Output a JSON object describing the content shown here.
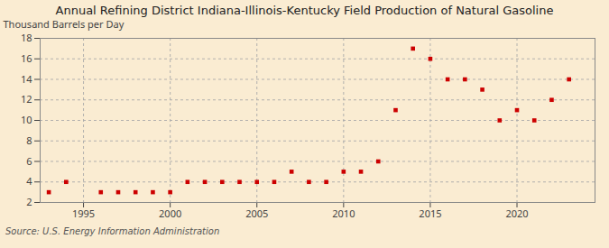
{
  "chart_data": {
    "type": "scatter",
    "title": "Annual Refining District Indiana-Illinois-Kentucky Field Production of Natural Gasoline",
    "ylabel": "Thousand Barrels per Day",
    "source": "Source: U.S. Energy Information Administration",
    "x": [
      1993,
      1994,
      1996,
      1997,
      1998,
      1999,
      2000,
      2001,
      2002,
      2003,
      2004,
      2005,
      2006,
      2007,
      2008,
      2009,
      2010,
      2011,
      2012,
      2013,
      2014,
      2015,
      2016,
      2017,
      2018,
      2019,
      2020,
      2021,
      2022,
      2023
    ],
    "values": [
      3,
      4,
      3,
      3,
      3,
      3,
      3,
      4,
      4,
      4,
      4,
      4,
      4,
      5,
      4,
      4,
      5,
      5,
      6,
      11,
      17,
      16,
      14,
      14,
      13,
      10,
      11,
      10,
      12,
      14
    ],
    "color": "#cc0000",
    "marker": "square",
    "xlim": [
      1992.5,
      2024.5
    ],
    "xticks": [
      1995,
      2000,
      2005,
      2010,
      2015,
      2020
    ],
    "ylim": [
      2,
      18
    ],
    "yticks": [
      2,
      4,
      6,
      8,
      10,
      12,
      14,
      16,
      18
    ],
    "grid": true
  }
}
